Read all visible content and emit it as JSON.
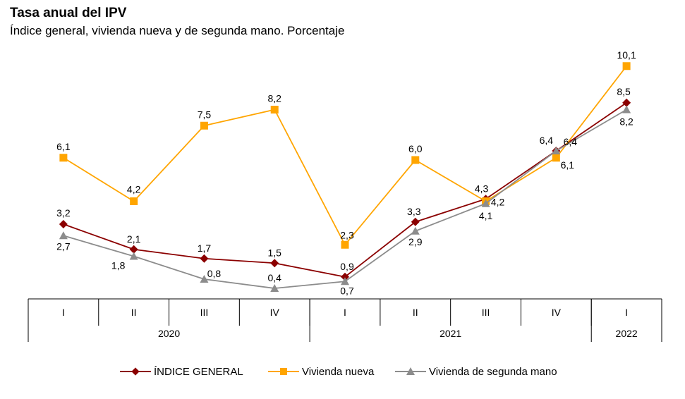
{
  "chart_data": {
    "type": "line",
    "title": "Tasa anual del IPV",
    "subtitle": "Índice general, vivienda nueva y de segunda mano. Porcentaje",
    "categories": [
      "I",
      "II",
      "III",
      "IV",
      "I",
      "II",
      "III",
      "IV",
      "I"
    ],
    "year_groups": [
      {
        "label": "2020",
        "span": 4
      },
      {
        "label": "2021",
        "span": 4
      },
      {
        "label": "2022",
        "span": 1
      }
    ],
    "series": [
      {
        "name": "ÍNDICE GENERAL",
        "color": "#8B0000",
        "marker": "diamond",
        "values": [
          3.2,
          2.1,
          1.7,
          1.5,
          0.9,
          3.3,
          4.3,
          6.4,
          8.5
        ],
        "labels": [
          "3,2",
          "2,1",
          "1,7",
          "1,5",
          "0,9",
          "3,3",
          "4,3",
          "6,4",
          "8,5"
        ]
      },
      {
        "name": "Vivienda nueva",
        "color": "#FFA500",
        "marker": "square",
        "values": [
          6.1,
          4.2,
          7.5,
          8.2,
          2.3,
          6.0,
          4.2,
          6.1,
          10.1
        ],
        "labels": [
          "6,1",
          "4,2",
          "7,5",
          "8,2",
          "2,3",
          "6,0",
          "4,2",
          "6,1",
          "10,1"
        ]
      },
      {
        "name": "Vivienda de segunda mano",
        "color": "#8C8C8C",
        "marker": "triangle",
        "values": [
          2.7,
          1.8,
          0.8,
          0.4,
          0.7,
          2.9,
          4.1,
          6.4,
          8.2
        ],
        "labels": [
          "2,7",
          "1,8",
          "0,8",
          "0,4",
          "0,7",
          "2,9",
          "4,1",
          "6,4",
          "8,2"
        ]
      }
    ],
    "legend_position": "bottom",
    "grid": false
  }
}
